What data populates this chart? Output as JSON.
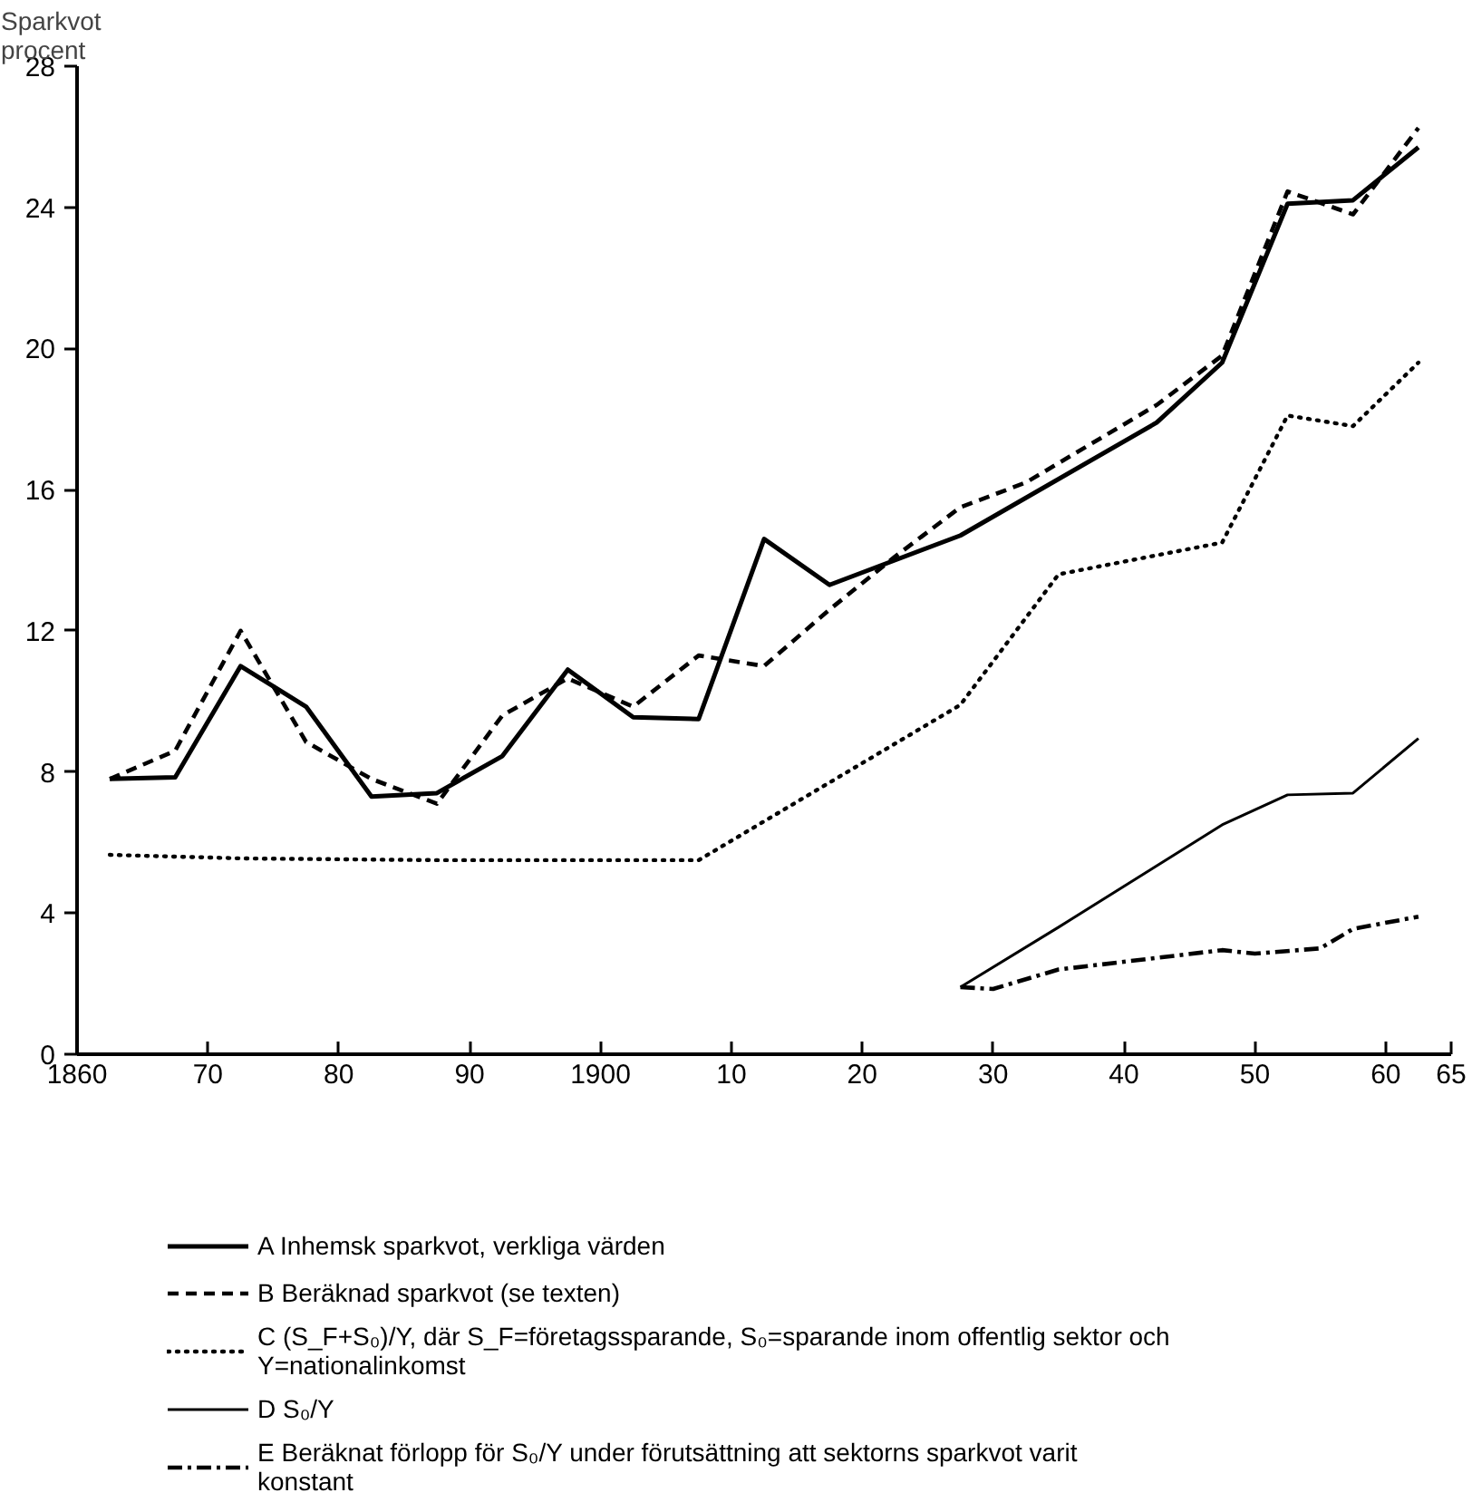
{
  "chart_data": {
    "type": "line",
    "ylabel": "Sparkvot procent",
    "xlim": [
      1860,
      1965
    ],
    "ylim": [
      0,
      28
    ],
    "xticks": [
      1860,
      {
        "value": 1870,
        "label": "70"
      },
      {
        "value": 1880,
        "label": "80"
      },
      {
        "value": 1890,
        "label": "90"
      },
      1900,
      {
        "value": 1910,
        "label": "10"
      },
      {
        "value": 1920,
        "label": "20"
      },
      {
        "value": 1930,
        "label": "30"
      },
      {
        "value": 1940,
        "label": "40"
      },
      {
        "value": 1950,
        "label": "50"
      },
      {
        "value": 1960,
        "label": "60"
      },
      {
        "value": 1965,
        "label": "65"
      }
    ],
    "yticks": [
      0,
      4,
      8,
      12,
      16,
      20,
      24,
      28
    ],
    "grid": false,
    "legend": "bottom",
    "series": [
      {
        "name": "A Inhemsk sparkvot, verkliga värden",
        "color": "#000000",
        "line_style": "solid",
        "x": [
          1862.5,
          1867.5,
          1872.5,
          1877.5,
          1882.5,
          1887.5,
          1892.5,
          1897.5,
          1902.5,
          1907.5,
          1912.5,
          1917.5,
          1927.5,
          1942.5,
          1947.5,
          1952.5,
          1957.5,
          1962.5
        ],
        "values": [
          7.8,
          7.85,
          11.0,
          9.85,
          7.3,
          7.4,
          8.45,
          10.9,
          9.55,
          9.5,
          14.6,
          13.3,
          14.7,
          17.9,
          19.6,
          24.1,
          24.2,
          25.7
        ]
      },
      {
        "name": "B Beräknad sparkvot (se texten)",
        "color": "#000000",
        "line_style": "dashed",
        "x": [
          1862.5,
          1867.5,
          1872.5,
          1877.5,
          1882.5,
          1887.5,
          1892.5,
          1897.5,
          1902.5,
          1907.5,
          1912.5,
          1917.5,
          1922.5,
          1927.5,
          1932.5,
          1942.5,
          1947.5,
          1952.5,
          1957.5,
          1962.5
        ],
        "values": [
          7.8,
          8.6,
          12.0,
          8.85,
          7.8,
          7.1,
          9.6,
          10.65,
          9.85,
          11.3,
          11.0,
          12.6,
          14.1,
          15.5,
          16.2,
          18.4,
          19.8,
          24.45,
          23.8,
          26.25
        ]
      },
      {
        "name": "C (S_F+S₀)/Y, där S_F=företagssparande, S₀=sparande inom offentlig sektor och Y=nationalinkomst",
        "color": "#000000",
        "line_style": "dotted",
        "x": [
          1862.5,
          1872.5,
          1887.5,
          1907.5,
          1927.5,
          1935,
          1947.5,
          1952.5,
          1957.5,
          1962.5
        ],
        "values": [
          5.65,
          5.55,
          5.5,
          5.5,
          9.9,
          13.6,
          14.5,
          18.1,
          17.8,
          19.6
        ]
      },
      {
        "name": "D S₀/Y",
        "color": "#000000",
        "line_style": "solid",
        "x": [
          1927.5,
          1935,
          1947.5,
          1952.5,
          1957.5,
          1962.5
        ],
        "values": [
          1.9,
          3.6,
          6.5,
          7.35,
          7.4,
          8.95
        ]
      },
      {
        "name": "E Beräknat förlopp för S₀/Y under förutsättning att sektorns sparkvot varit konstant",
        "color": "#000000",
        "line_style": "dashdot",
        "x": [
          1927.5,
          1930,
          1935,
          1947.5,
          1950,
          1955,
          1957.5,
          1962.5
        ],
        "values": [
          1.9,
          1.85,
          2.4,
          2.95,
          2.85,
          3.0,
          3.55,
          3.9
        ]
      }
    ]
  }
}
